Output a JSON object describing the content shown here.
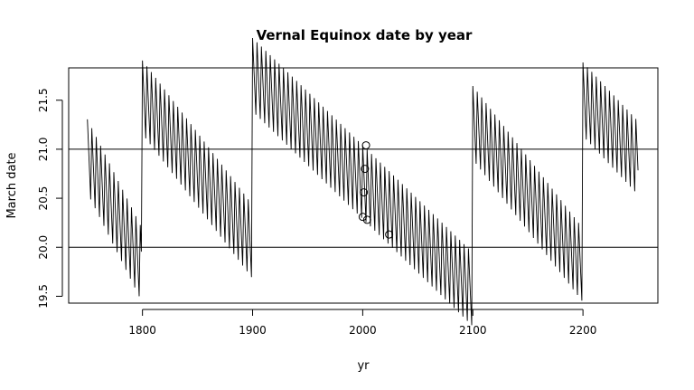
{
  "chart_data": {
    "type": "line",
    "title": "Vernal Equinox date by year",
    "xlabel": "yr",
    "ylabel": "March date",
    "xlim": [
      1733,
      2268
    ],
    "ylim": [
      19.43,
      21.83
    ],
    "xticks": [
      1800,
      1900,
      2000,
      2100,
      2200
    ],
    "xtick_labels": [
      "1800",
      "1900",
      "2000",
      "2100",
      "2200"
    ],
    "yticks": [
      19.5,
      20.0,
      20.5,
      21.0,
      21.5
    ],
    "ytick_labels": [
      "19.5",
      "20.0",
      "20.5",
      "21.0",
      "21.5"
    ],
    "hlines": [
      20.0,
      21.0
    ],
    "grid": false,
    "legend": "none",
    "series": [
      {
        "style": "line",
        "sawtooth": {
          "x_start": 1750,
          "x_end": 2250,
          "leap_cycle_years": 4,
          "segments": [
            {
              "x_start": 1750,
              "x_end": 1799,
              "start_value": 20.93,
              "end_value": 19.83,
              "amplitude": 0.75
            },
            {
              "x_start": 1800,
              "x_end": 1899,
              "start_value": 21.53,
              "end_value": 20.07,
              "amplitude": 0.75
            },
            {
              "x_start": 1900,
              "x_end": 2099,
              "start_value": 21.76,
              "end_value": 19.58,
              "amplitude": 0.75
            },
            {
              "x_start": 2100,
              "x_end": 2199,
              "start_value": 21.27,
              "end_value": 19.83,
              "amplitude": 0.75
            },
            {
              "x_start": 2200,
              "x_end": 2250,
              "start_value": 21.51,
              "end_value": 20.91,
              "amplitude": 0.75
            }
          ]
        }
      },
      {
        "style": "points",
        "marker": "open-circle",
        "points": [
          {
            "x": 2000,
            "y": 20.31
          },
          {
            "x": 2001,
            "y": 20.56
          },
          {
            "x": 2002,
            "y": 20.8
          },
          {
            "x": 2003,
            "y": 21.04
          },
          {
            "x": 2004,
            "y": 20.28
          },
          {
            "x": 2024,
            "y": 20.13
          }
        ]
      }
    ]
  }
}
